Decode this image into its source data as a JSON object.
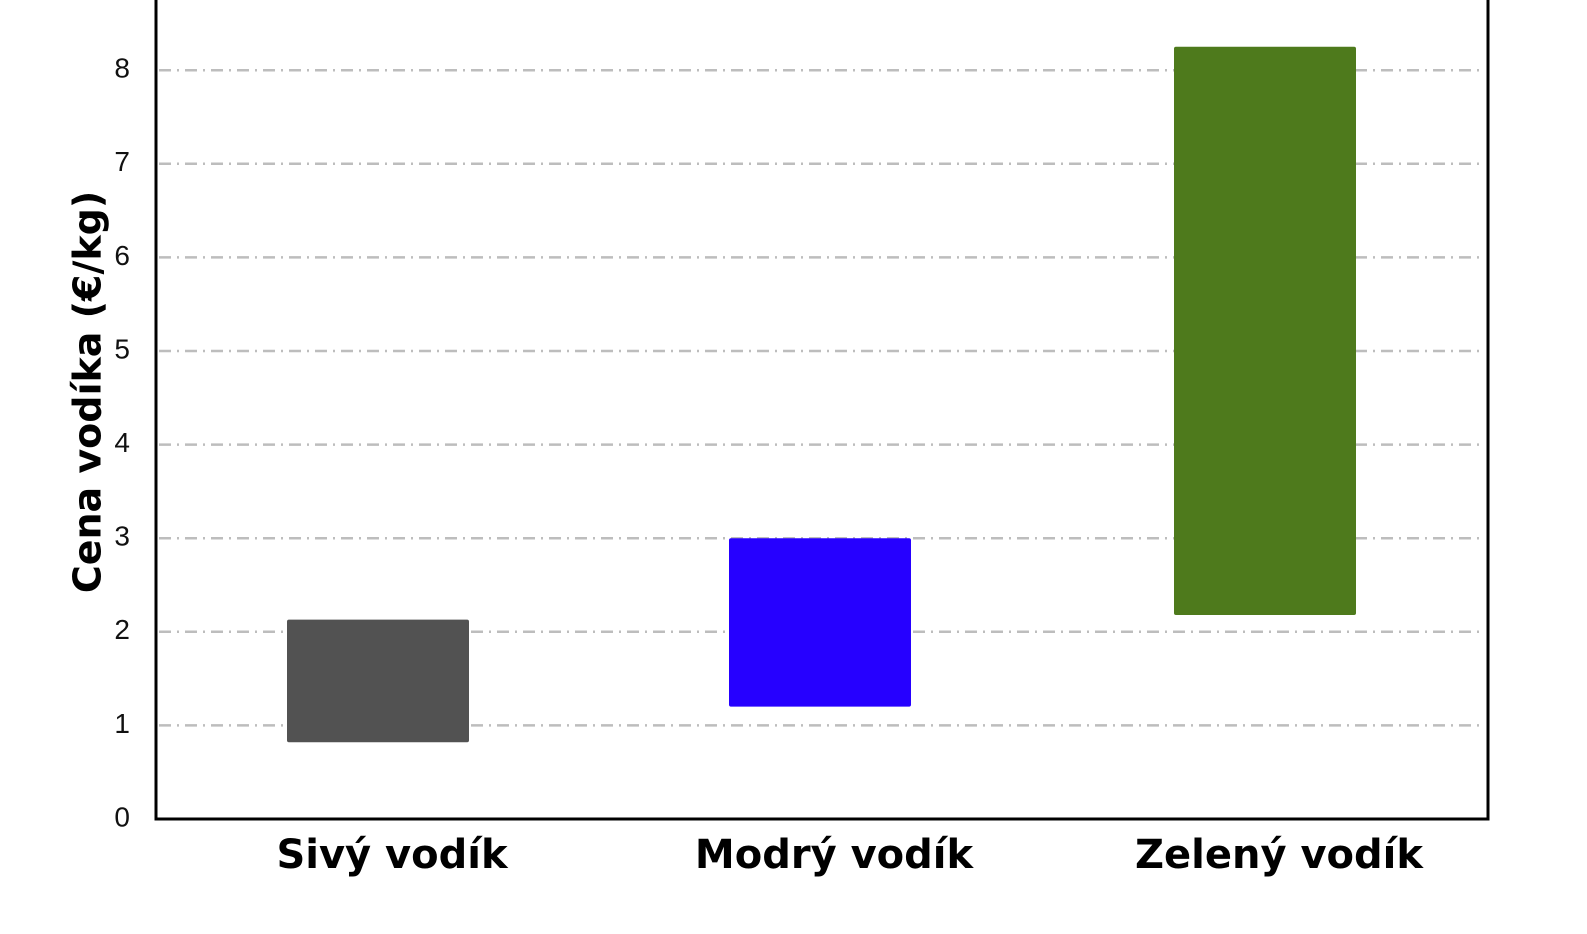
{
  "chart_data": {
    "type": "bar",
    "subtype": "floating-range",
    "ylabel": "Cena vodíka (€/kg)",
    "xlabel": "",
    "ylim": [
      0,
      8.8
    ],
    "yticks": [
      "0",
      "1",
      "2",
      "3",
      "4",
      "5",
      "6",
      "7",
      "8"
    ],
    "grid": "horizontal dotted",
    "categories": [
      "Sivý vodík",
      "Modrý vodík",
      "Zelený vodík"
    ],
    "ranges": [
      {
        "low": 0.82,
        "high": 2.13,
        "color": "#525252"
      },
      {
        "low": 1.2,
        "high": 3.0,
        "color": "#2600ff"
      },
      {
        "low": 2.18,
        "high": 8.25,
        "color": "#4e7a1c"
      }
    ]
  }
}
